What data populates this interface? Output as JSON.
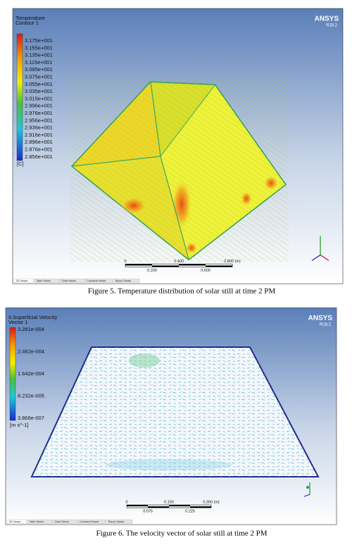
{
  "figures": [
    {
      "viewer": {
        "legend_title": "Temperature",
        "legend_subtitle": "Contour 1",
        "legend_values": [
          "3.175e+001",
          "3.155e+001",
          "3.135e+001",
          "3.115e+001",
          "3.095e+001",
          "3.075e+001",
          "3.055e+001",
          "3.035e+001",
          "3.015e+001",
          "2.996e+001",
          "2.976e+001",
          "2.956e+001",
          "2.936e+001",
          "2.916e+001",
          "2.896e+001",
          "2.876e+001",
          "2.856e+001"
        ],
        "unit": "[C]",
        "brand": "ANSYS",
        "version": "R18.2",
        "scale_top": [
          "0",
          "0.400",
          "0.800 (m)"
        ],
        "scale_bottom": [
          "0.200",
          "0.600"
        ],
        "tabs": [
          "3D Viewer",
          "Table Viewer",
          "Chart Viewer",
          "Comment Viewer",
          "Report Viewer"
        ]
      },
      "caption": "Figure 5. Temperature distribution of solar still at time 2 PM"
    },
    {
      "viewer": {
        "legend_title": "II.Superficial Velocity",
        "legend_subtitle": "Vector 1",
        "legend_values": [
          "3.281e-004",
          "2.462e-004",
          "1.642e-004",
          "8.232e-005",
          "3.866e-007"
        ],
        "unit": "[m s^-1]",
        "brand": "ANSYS",
        "version": "R18.2",
        "scale_top": [
          "0",
          "0.150",
          "0.300 (m)"
        ],
        "scale_bottom": [
          "0.075",
          "0.225"
        ],
        "tabs": [
          "3D Viewer",
          "Table Viewer",
          "Chart Viewer",
          "Comment Viewer",
          "Report Viewer"
        ]
      },
      "caption": "Figure 6. The velocity vector of solar still at time 2 PM"
    }
  ]
}
